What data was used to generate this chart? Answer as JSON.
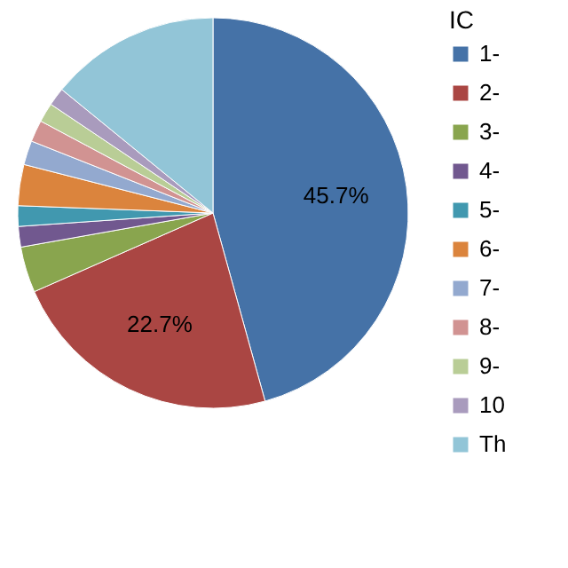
{
  "chart_data": {
    "type": "pie",
    "legend_title": "IC",
    "categories": [
      "1-",
      "2-",
      "3-",
      "4-",
      "5-",
      "6-",
      "7-",
      "8-",
      "9-",
      "10",
      "Th"
    ],
    "values": [
      45.7,
      22.7,
      3.8,
      1.7,
      1.7,
      3.4,
      2.0,
      1.8,
      1.6,
      1.5,
      14.1
    ],
    "colors": [
      "#4572a7",
      "#aa4643",
      "#89a54e",
      "#71588f",
      "#4198af",
      "#db843d",
      "#93a9cf",
      "#d19392",
      "#b9cd96",
      "#a99bbd",
      "#92c5d7"
    ],
    "value_labels": [
      "45.7%",
      "22.7%",
      null,
      null,
      null,
      null,
      null,
      null,
      null,
      null,
      null
    ],
    "legend": "right"
  }
}
